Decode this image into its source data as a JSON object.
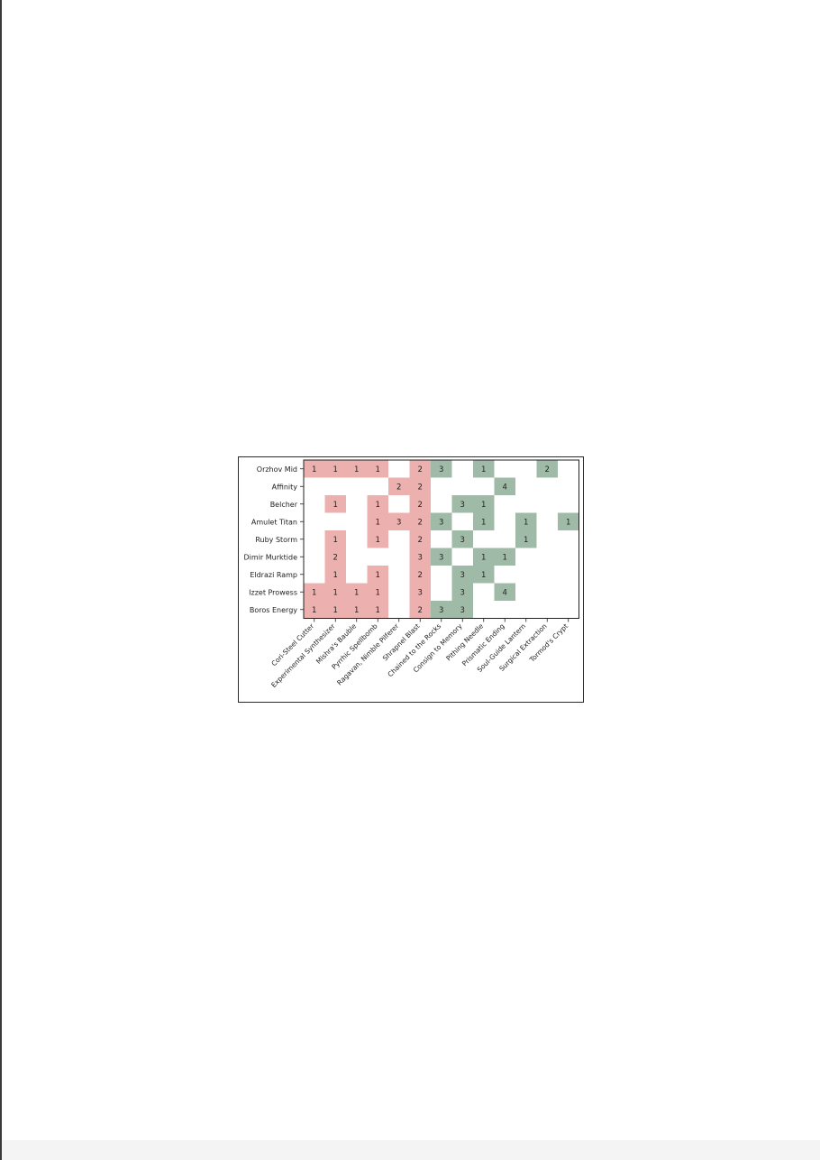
{
  "chart_data": {
    "type": "heatmap",
    "rows": [
      "Orzhov Mid",
      "Affinity",
      "Belcher",
      "Amulet Titan",
      "Ruby Storm",
      "Dimir Murktide",
      "Eldrazi Ramp",
      "Izzet Prowess",
      "Boros Energy"
    ],
    "columns": [
      "Cori-Steel Cutter",
      "Experimental Synthesizer",
      "Mishra's Bauble",
      "Pyrrhic Spellbomb",
      "Ragavan, Nimble Pilferer",
      "Shrapnel Blast",
      "Chained to the Rocks",
      "Consign to Memory",
      "Pithing Needle",
      "Prismatic Ending",
      "Soul-Guide Lantern",
      "Surgical Extraction",
      "Tormod's Crypt"
    ],
    "column_groups": [
      "pink",
      "pink",
      "pink",
      "pink",
      "pink",
      "pink",
      "green",
      "green",
      "green",
      "green",
      "green",
      "green",
      "green"
    ],
    "values": [
      [
        1,
        1,
        1,
        1,
        null,
        2,
        3,
        null,
        1,
        null,
        null,
        2,
        null
      ],
      [
        null,
        null,
        null,
        null,
        2,
        2,
        null,
        null,
        null,
        4,
        null,
        null,
        null
      ],
      [
        null,
        1,
        null,
        1,
        null,
        2,
        null,
        3,
        1,
        null,
        null,
        null,
        null
      ],
      [
        null,
        null,
        null,
        1,
        3,
        2,
        3,
        null,
        1,
        null,
        1,
        null,
        1
      ],
      [
        null,
        1,
        null,
        1,
        null,
        2,
        null,
        3,
        null,
        null,
        1,
        null,
        null
      ],
      [
        null,
        2,
        null,
        null,
        null,
        3,
        3,
        null,
        1,
        1,
        null,
        null,
        null
      ],
      [
        null,
        1,
        null,
        1,
        null,
        2,
        null,
        3,
        1,
        null,
        null,
        null,
        null
      ],
      [
        1,
        1,
        1,
        1,
        null,
        3,
        null,
        3,
        null,
        4,
        null,
        null,
        null
      ],
      [
        1,
        1,
        1,
        1,
        null,
        2,
        3,
        3,
        null,
        null,
        null,
        null,
        null
      ]
    ],
    "colors": {
      "pink": "#ecb1ae",
      "green": "#9fbba8"
    },
    "grid": false,
    "legend": "none"
  }
}
